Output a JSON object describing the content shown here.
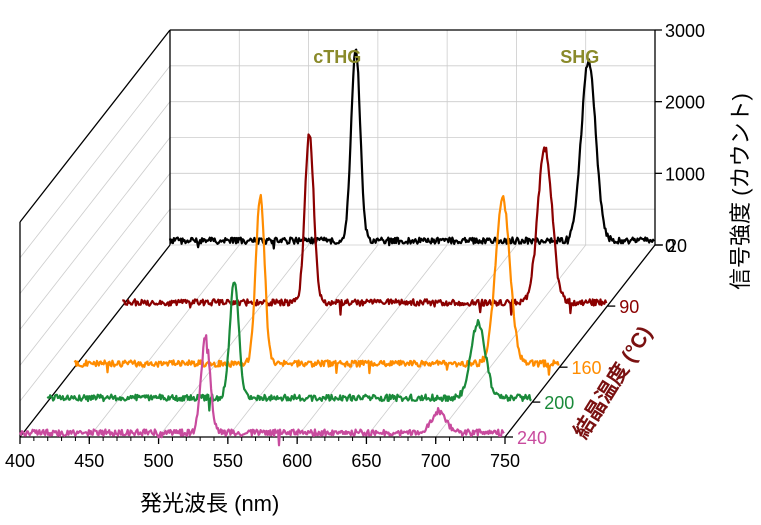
{
  "chart_data": {
    "type": "line",
    "projection": "3d-waterfall",
    "title": "",
    "xlabel": "発光波長 (nm)",
    "ylabel": "信号強度 (カウント)",
    "zlabel": "結晶温度 (°C)",
    "xlim": [
      400,
      750
    ],
    "ylim": [
      0,
      3000
    ],
    "zlim": [
      20,
      240
    ],
    "x_ticks": [
      400,
      450,
      500,
      550,
      600,
      650,
      700,
      750
    ],
    "y_ticks": [
      0,
      1000,
      2000,
      3000
    ],
    "z_ticks": [
      20,
      90,
      160,
      200,
      240
    ],
    "annotations": [
      {
        "text": "cTHG",
        "x": 525,
        "color": "#8a8a2a"
      },
      {
        "text": "SHG",
        "x": 700,
        "color": "#8a8a2a"
      }
    ],
    "series": [
      {
        "name": "20",
        "temperature": 20,
        "color": "#000000",
        "peaks": [
          {
            "label": "cTHG",
            "x": 534,
            "y": 2700
          },
          {
            "label": "SHG",
            "x": 702,
            "y": 2500
          }
        ],
        "baseline": 60
      },
      {
        "name": "90",
        "temperature": 90,
        "color": "#8b0000",
        "peaks": [
          {
            "label": "cTHG",
            "x": 535,
            "y": 2350
          },
          {
            "label": "SHG",
            "x": 705,
            "y": 2150
          }
        ],
        "baseline": 50
      },
      {
        "name": "160",
        "temperature": 160,
        "color": "#ff8c00",
        "peaks": [
          {
            "label": "cTHG",
            "x": 534,
            "y": 2350
          },
          {
            "label": "SHG",
            "x": 709,
            "y": 2300
          }
        ],
        "baseline": 50
      },
      {
        "name": "200",
        "temperature": 200,
        "color": "#1a8a3a",
        "peaks": [
          {
            "label": "cTHG",
            "x": 535,
            "y": 1650
          },
          {
            "label": "SHG",
            "x": 711,
            "y": 1050
          }
        ],
        "baseline": 60
      },
      {
        "name": "240",
        "temperature": 240,
        "color": "#c84b9e",
        "peaks": [
          {
            "label": "cTHG",
            "x": 534,
            "y": 1350
          },
          {
            "label": "SHG",
            "x": 702,
            "y": 300
          }
        ],
        "baseline": 60
      }
    ],
    "colors": {
      "axis": "#000000",
      "grid": "#cccccc",
      "annotation": "#8a8a2a",
      "zlabel": "#7a1010"
    }
  }
}
